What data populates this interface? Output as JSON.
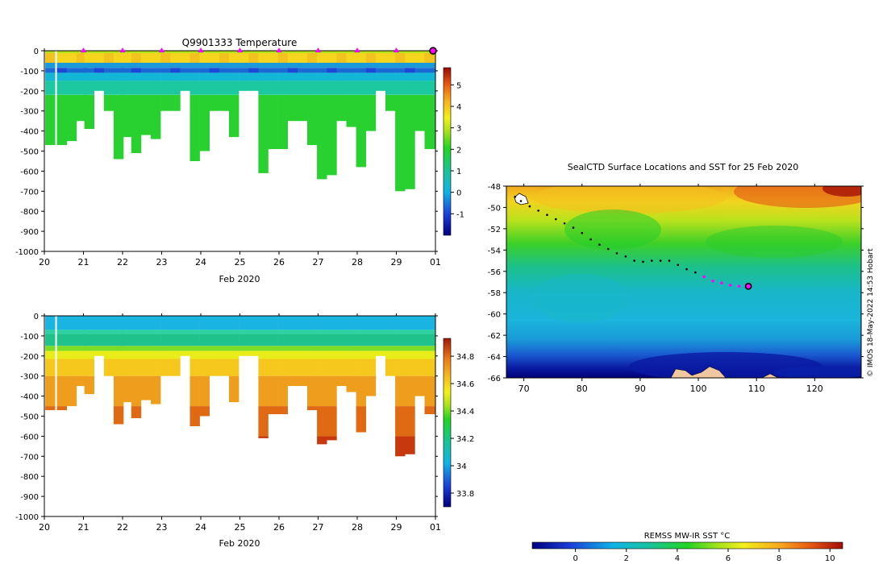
{
  "chart_data": [
    {
      "type": "heatmap",
      "variable": "temperature",
      "title": "Q9901333  Temperature",
      "xlabel": "Feb 2020",
      "ylabel": "",
      "x_ticks": [
        "20",
        "21",
        "22",
        "23",
        "24",
        "25",
        "26",
        "27",
        "28",
        "29",
        "01"
      ],
      "x_range": [
        20,
        30
      ],
      "y_range": [
        -1000,
        0
      ],
      "y_ticks": [
        0,
        -100,
        -200,
        -300,
        -400,
        -500,
        -600,
        -700,
        -800,
        -900,
        -1000
      ],
      "surface_markers": [
        21,
        22,
        23,
        24,
        25,
        26,
        27,
        28,
        29
      ],
      "latest_marker": 30,
      "colorbar": {
        "min": -2,
        "max": 5.8,
        "ticks": [
          -1,
          0,
          1,
          2,
          3,
          4,
          5
        ]
      },
      "profiles": [
        {
          "t": 20.15,
          "depth": 470
        },
        {
          "t": 20.45,
          "depth": 470
        },
        {
          "t": 20.7,
          "depth": 450
        },
        {
          "t": 20.95,
          "depth": 350
        },
        {
          "t": 21.15,
          "depth": 390
        },
        {
          "t": 21.4,
          "depth": 200
        },
        {
          "t": 21.65,
          "depth": 300
        },
        {
          "t": 21.9,
          "depth": 540
        },
        {
          "t": 22.1,
          "depth": 430
        },
        {
          "t": 22.35,
          "depth": 510
        },
        {
          "t": 22.6,
          "depth": 420
        },
        {
          "t": 22.85,
          "depth": 440
        },
        {
          "t": 23.1,
          "depth": 300
        },
        {
          "t": 23.35,
          "depth": 300
        },
        {
          "t": 23.6,
          "depth": 200
        },
        {
          "t": 23.85,
          "depth": 550
        },
        {
          "t": 24.1,
          "depth": 500
        },
        {
          "t": 24.35,
          "depth": 300
        },
        {
          "t": 24.6,
          "depth": 300
        },
        {
          "t": 24.85,
          "depth": 430
        },
        {
          "t": 25.1,
          "depth": 200
        },
        {
          "t": 25.35,
          "depth": 200
        },
        {
          "t": 25.6,
          "depth": 610
        },
        {
          "t": 25.85,
          "depth": 490
        },
        {
          "t": 26.1,
          "depth": 490
        },
        {
          "t": 26.35,
          "depth": 350
        },
        {
          "t": 26.6,
          "depth": 350
        },
        {
          "t": 26.85,
          "depth": 470
        },
        {
          "t": 27.1,
          "depth": 640
        },
        {
          "t": 27.35,
          "depth": 620
        },
        {
          "t": 27.6,
          "depth": 350
        },
        {
          "t": 27.85,
          "depth": 380
        },
        {
          "t": 28.1,
          "depth": 580
        },
        {
          "t": 28.35,
          "depth": 400
        },
        {
          "t": 28.6,
          "depth": 200
        },
        {
          "t": 28.85,
          "depth": 300
        },
        {
          "t": 29.1,
          "depth": 700
        },
        {
          "t": 29.35,
          "depth": 690
        },
        {
          "t": 29.6,
          "depth": 400
        },
        {
          "t": 29.85,
          "depth": 490
        },
        {
          "t": 30.1,
          "depth": 490
        }
      ]
    },
    {
      "type": "heatmap",
      "variable": "salinity",
      "title": "",
      "xlabel": "Feb 2020",
      "ylabel": "",
      "x_ticks": [
        "20",
        "21",
        "22",
        "23",
        "24",
        "25",
        "26",
        "27",
        "28",
        "29",
        "01"
      ],
      "x_range": [
        20,
        30
      ],
      "y_range": [
        -1000,
        0
      ],
      "y_ticks": [
        0,
        -100,
        -200,
        -300,
        -400,
        -500,
        -600,
        -700,
        -800,
        -900,
        -1000
      ],
      "colorbar": {
        "min": 33.7,
        "max": 34.93,
        "ticks": [
          33.8,
          34,
          34.2,
          34.4,
          34.6,
          34.8
        ]
      }
    },
    {
      "type": "heatmap",
      "variable": "sst_map",
      "title": "SealCTD Surface Locations and SST for 25 Feb 2020",
      "x_ticks": [
        70,
        80,
        90,
        100,
        110,
        120
      ],
      "x_range": [
        67,
        128
      ],
      "y_ticks": [
        -48,
        -50,
        -52,
        -54,
        -56,
        -58,
        -60,
        -62,
        -64,
        -66
      ],
      "y_range": [
        -66,
        -48
      ],
      "colorbar": {
        "label": "REMSS MW-IR SST °C",
        "min": -1.7,
        "max": 10.5,
        "ticks": [
          0,
          2,
          4,
          6,
          8,
          10
        ]
      },
      "track": [
        [
          68.5,
          -49.0
        ],
        [
          69.5,
          -49.4
        ],
        [
          71,
          -49.9
        ],
        [
          72.5,
          -50.3
        ],
        [
          74,
          -50.7
        ],
        [
          75.5,
          -51.1
        ],
        [
          77,
          -51.5
        ],
        [
          78.5,
          -51.9
        ],
        [
          80,
          -52.4
        ],
        [
          81.5,
          -53.0
        ],
        [
          83,
          -53.5
        ],
        [
          84.5,
          -53.9
        ],
        [
          86,
          -54.3
        ],
        [
          87.5,
          -54.6
        ],
        [
          89,
          -55.0
        ],
        [
          90.5,
          -55.1
        ],
        [
          92,
          -55.0
        ],
        [
          93.5,
          -55.0
        ],
        [
          95,
          -55.0
        ],
        [
          96.5,
          -55.4
        ],
        [
          98,
          -55.8
        ],
        [
          99.5,
          -56.1
        ],
        [
          101,
          -56.5
        ],
        [
          102.5,
          -56.9
        ],
        [
          104,
          -57.1
        ],
        [
          105.5,
          -57.3
        ],
        [
          107,
          -57.4
        ],
        [
          108.5,
          -57.4
        ]
      ],
      "recent_track_start_index": 22,
      "final_location": [
        108.6,
        -57.4
      ],
      "credit": "© IMOS 18-May-2022 14:53 Hobart"
    }
  ]
}
